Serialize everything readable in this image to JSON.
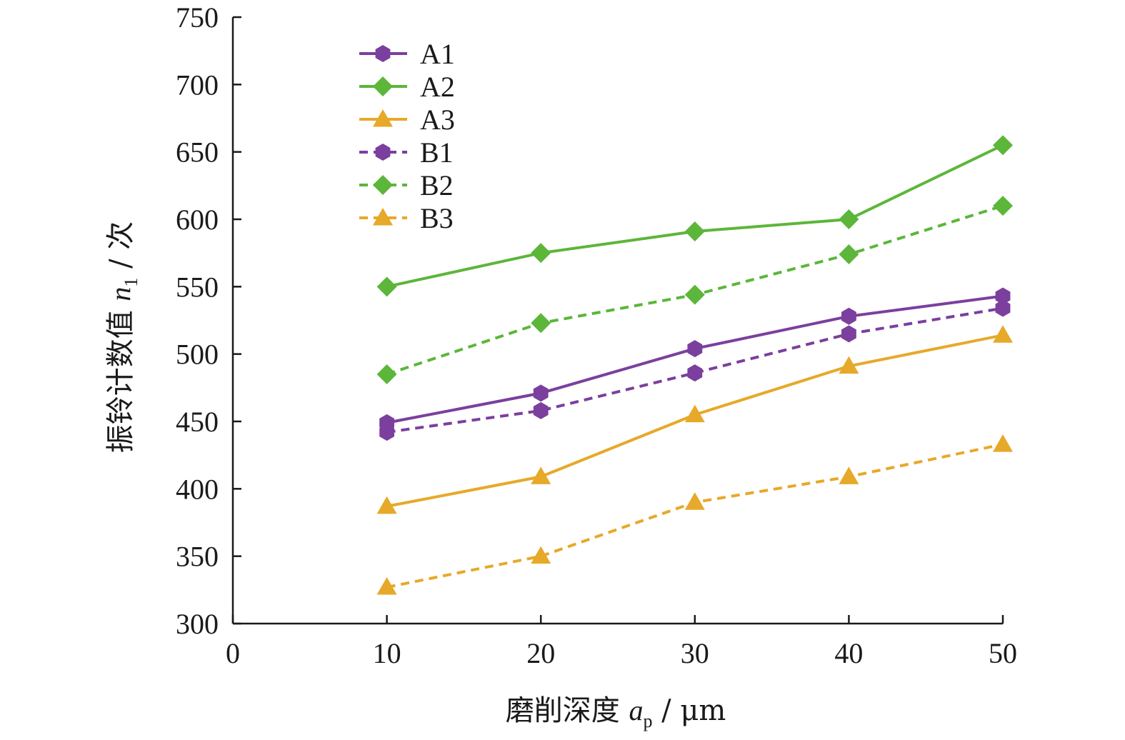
{
  "chart_data": {
    "type": "line",
    "xlabel_parts": [
      "磨削深度 ",
      "a",
      "p",
      " / μm"
    ],
    "ylabel_parts": [
      "振铃计数值 ",
      "n",
      "1",
      " / 次"
    ],
    "x": [
      10,
      20,
      30,
      40,
      50
    ],
    "xlim": [
      0,
      50
    ],
    "ylim": [
      300,
      750
    ],
    "x_ticks": [
      0,
      10,
      20,
      30,
      40,
      50
    ],
    "y_ticks": [
      300,
      350,
      400,
      450,
      500,
      550,
      600,
      650,
      700,
      750
    ],
    "grid": false,
    "legend_position": "top-left",
    "series": [
      {
        "name": "A1",
        "values": [
          449,
          471,
          504,
          528,
          543
        ],
        "color": "#7b3f9e",
        "marker": "hexagon",
        "dash": "solid"
      },
      {
        "name": "A2",
        "values": [
          550,
          575,
          591,
          600,
          655
        ],
        "color": "#5cb63a",
        "marker": "diamond",
        "dash": "solid"
      },
      {
        "name": "A3",
        "values": [
          387,
          409,
          455,
          491,
          514
        ],
        "color": "#e6a929",
        "marker": "triangle",
        "dash": "solid"
      },
      {
        "name": "B1",
        "values": [
          442,
          458,
          486,
          515,
          534
        ],
        "color": "#7b3f9e",
        "marker": "hexagon",
        "dash": "dashed"
      },
      {
        "name": "B2",
        "values": [
          485,
          523,
          544,
          574,
          610
        ],
        "color": "#5cb63a",
        "marker": "diamond",
        "dash": "dashed"
      },
      {
        "name": "B3",
        "values": [
          327,
          350,
          390,
          409,
          433
        ],
        "color": "#e6a929",
        "marker": "triangle",
        "dash": "dashed"
      }
    ]
  }
}
